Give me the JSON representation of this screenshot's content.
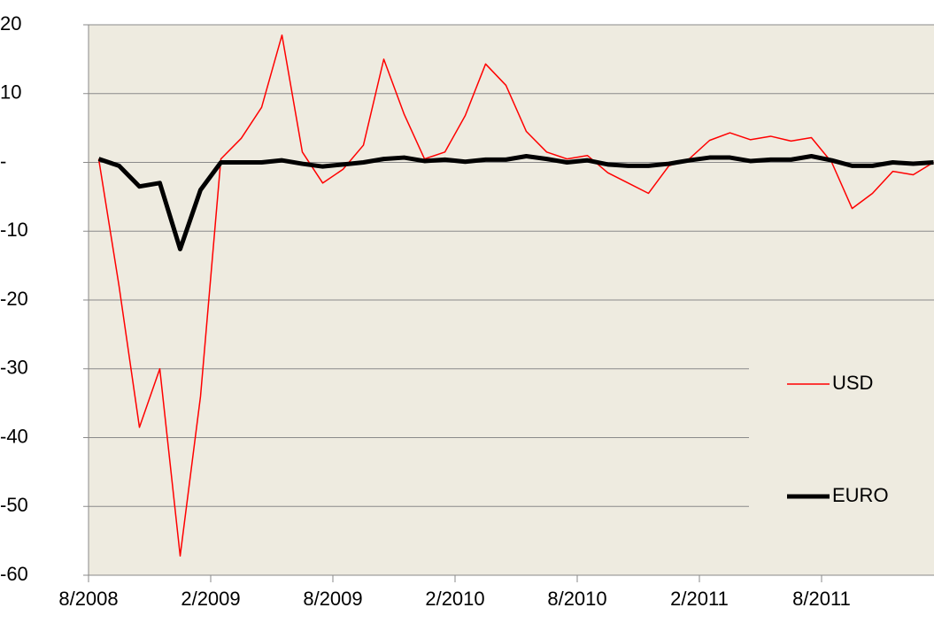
{
  "chart_data": {
    "type": "line",
    "categories": [
      "8/2008",
      null,
      null,
      null,
      null,
      null,
      "2/2009",
      null,
      null,
      null,
      null,
      null,
      "8/2009",
      null,
      null,
      null,
      null,
      null,
      "2/2010",
      null,
      null,
      null,
      null,
      null,
      "8/2010",
      null,
      null,
      null,
      null,
      null,
      "2/2011",
      null,
      null,
      null,
      null,
      null,
      "8/2011",
      null,
      null,
      null,
      null,
      null
    ],
    "series": [
      {
        "name": "USD",
        "color": "#ff0000",
        "width": 1.5,
        "values": [
          0.5,
          -18,
          -38.5,
          -30,
          -57.2,
          -34,
          0.5,
          3.5,
          8,
          18.5,
          1.5,
          -3,
          -1,
          2.5,
          15,
          7,
          0.5,
          1.5,
          6.8,
          14.3,
          11.2,
          4.5,
          1.5,
          0.5,
          1,
          -1.5,
          -3,
          -4.5,
          -0.5,
          0.5,
          3.2,
          4.3,
          3.3,
          3.8,
          3.1,
          3.6,
          0,
          -6.7,
          -4.5,
          -1.3,
          -1.8,
          0
        ]
      },
      {
        "name": "EURO",
        "color": "#000000",
        "width": 5,
        "values": [
          0.5,
          -0.5,
          -3.5,
          -3,
          -12.6,
          -4,
          0,
          0,
          0,
          0.3,
          -0.2,
          -0.6,
          -0.3,
          0,
          0.5,
          0.7,
          0.2,
          0.4,
          0.1,
          0.4,
          0.4,
          0.9,
          0.5,
          0,
          0.3,
          -0.3,
          -0.5,
          -0.5,
          -0.2,
          0.3,
          0.7,
          0.7,
          0.2,
          0.4,
          0.4,
          0.9,
          0.3,
          -0.5,
          -0.5,
          0,
          -0.2,
          0
        ]
      }
    ],
    "ylim": [
      -60,
      20
    ],
    "yticks": [
      20,
      10,
      {
        "value": 0,
        "label": "-"
      },
      -10,
      -20,
      -30,
      -40,
      -50,
      -60
    ],
    "grid": true,
    "legend": "right",
    "background": "#eeebe0"
  }
}
